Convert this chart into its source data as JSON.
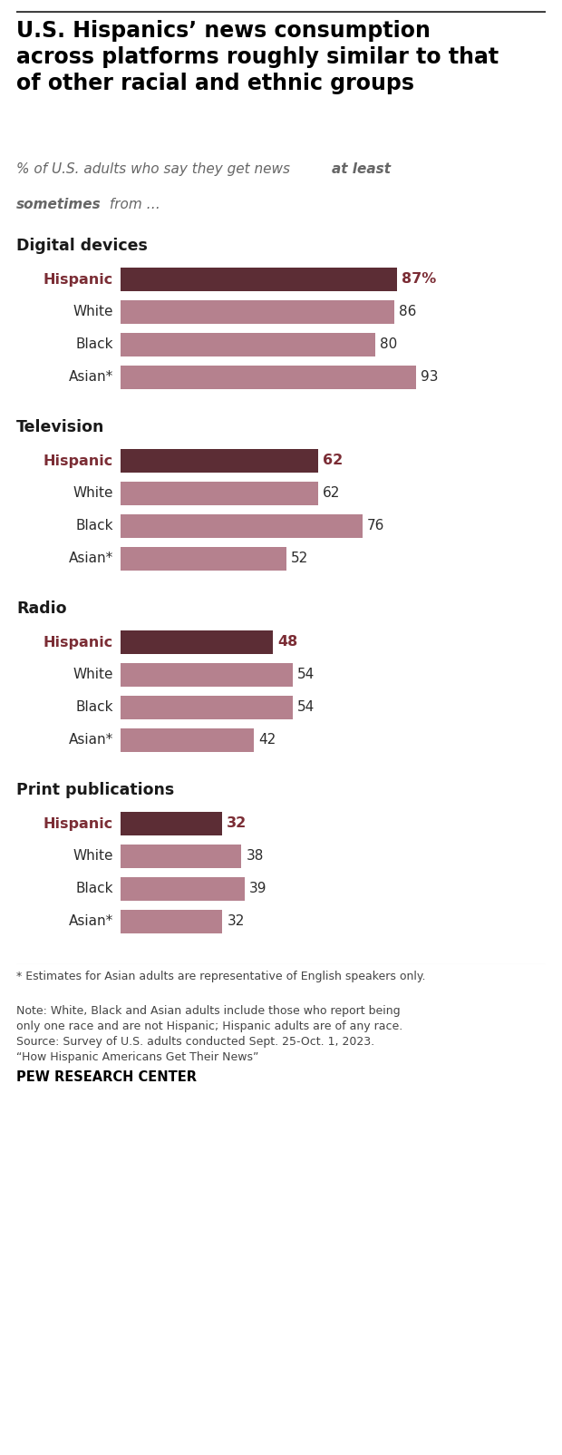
{
  "title": "U.S. Hispanics’ news consumption\nacross platforms roughly similar to that\nof other racial and ethnic groups",
  "sections": [
    {
      "header": "Digital devices",
      "bars": [
        {
          "label": "Hispanic",
          "value": 87,
          "is_hispanic": true
        },
        {
          "label": "White",
          "value": 86,
          "is_hispanic": false
        },
        {
          "label": "Black",
          "value": 80,
          "is_hispanic": false
        },
        {
          "label": "Asian*",
          "value": 93,
          "is_hispanic": false
        }
      ]
    },
    {
      "header": "Television",
      "bars": [
        {
          "label": "Hispanic",
          "value": 62,
          "is_hispanic": true
        },
        {
          "label": "White",
          "value": 62,
          "is_hispanic": false
        },
        {
          "label": "Black",
          "value": 76,
          "is_hispanic": false
        },
        {
          "label": "Asian*",
          "value": 52,
          "is_hispanic": false
        }
      ]
    },
    {
      "header": "Radio",
      "bars": [
        {
          "label": "Hispanic",
          "value": 48,
          "is_hispanic": true
        },
        {
          "label": "White",
          "value": 54,
          "is_hispanic": false
        },
        {
          "label": "Black",
          "value": 54,
          "is_hispanic": false
        },
        {
          "label": "Asian*",
          "value": 42,
          "is_hispanic": false
        }
      ]
    },
    {
      "header": "Print publications",
      "bars": [
        {
          "label": "Hispanic",
          "value": 32,
          "is_hispanic": true
        },
        {
          "label": "White",
          "value": 38,
          "is_hispanic": false
        },
        {
          "label": "Black",
          "value": 39,
          "is_hispanic": false
        },
        {
          "label": "Asian*",
          "value": 32,
          "is_hispanic": false
        }
      ]
    }
  ],
  "hispanic_bar_color": "#5c2d35",
  "other_bar_color": "#b5818e",
  "hispanic_label_color": "#7b2d35",
  "hispanic_value_color": "#7b2d35",
  "other_label_color": "#2b2b2b",
  "other_value_color": "#2b2b2b",
  "header_color": "#1a1a1a",
  "subtitle_color": "#666666",
  "top_line_color": "#333333",
  "footnote_line_color": "#cccccc",
  "footnote1": "* Estimates for Asian adults are representative of English speakers only.",
  "footnote2": "Note: White, Black and Asian adults include those who report being only one race and are not Hispanic; Hispanic adults are of any race. Source: Survey of U.S. adults conducted Sept. 25-Oct. 1, 2023. “How Hispanic Americans Get Their News”",
  "footnote3": "PEW RESEARCH CENTER"
}
